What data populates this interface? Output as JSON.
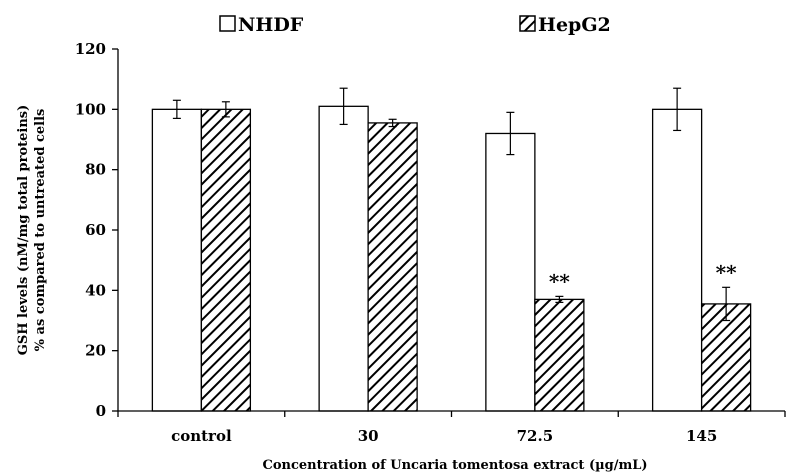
{
  "chart_data": {
    "type": "bar",
    "title": "",
    "categories": [
      "control",
      "30",
      "72.5",
      "145"
    ],
    "series": [
      {
        "name": "NHDF",
        "values": [
          100,
          101,
          92,
          100
        ],
        "errors": [
          3,
          6,
          7,
          7
        ],
        "fill": "#ffffff",
        "pattern": "none"
      },
      {
        "name": "HepG2",
        "values": [
          100,
          95.5,
          37,
          35.5
        ],
        "errors": [
          2.5,
          1.2,
          1,
          5.5
        ],
        "fill": "#ffffff",
        "pattern": "diagonal-hatch"
      }
    ],
    "annotations": [
      {
        "category": "72.5",
        "series": "HepG2",
        "text": "**"
      },
      {
        "category": "145",
        "series": "HepG2",
        "text": "**"
      }
    ],
    "ylim": [
      0,
      120
    ],
    "yticks": [
      0,
      20,
      40,
      60,
      80,
      100,
      120
    ],
    "ylabel_line1": "GSH levels (nM/mg total proteins)",
    "ylabel_line2": "% as compared to untreated cells",
    "xlabel": "Concentration  of Uncaria  tomentosa extract (µg/mL)",
    "grid": false,
    "legend_position": "top"
  }
}
